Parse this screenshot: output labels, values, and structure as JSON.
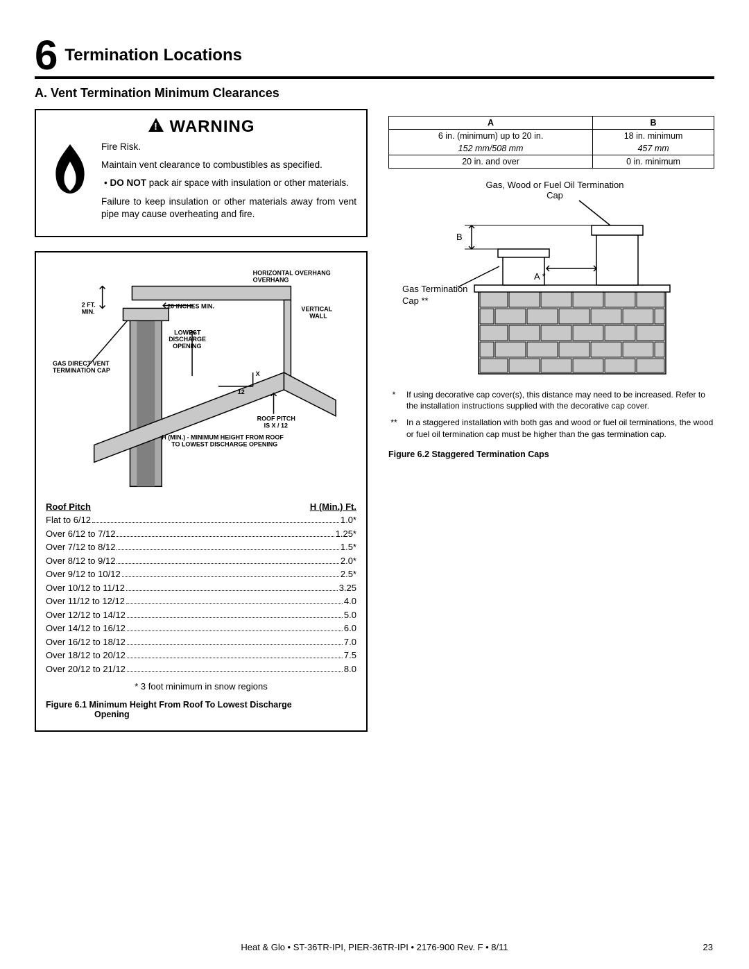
{
  "section": {
    "number": "6",
    "title": "Termination Locations"
  },
  "subsection": "A.  Vent Termination Minimum Clearances",
  "warning": {
    "heading": "WARNING",
    "fire_risk": "Fire Risk.",
    "maintain": "Maintain vent clearance to combustibles as specified.",
    "donot_label": "DO NOT",
    "donot_rest": " pack air space with insulation or other materials.",
    "failure": "Failure to keep insulation or other materials away from vent pipe may cause overheating and fire."
  },
  "roof_diagram": {
    "labels": {
      "horiz_overhang": "HORIZONTAL OVERHANG",
      "two_ft_min": "2 FT. MIN.",
      "twenty_in_min": "20 INCHES MIN.",
      "vertical_wall": "VERTICAL WALL",
      "lowest": "LOWEST DISCHARGE OPENING",
      "gas_cap": "GAS DIRECT VENT TERMINATION CAP",
      "x12_a": "X",
      "x12_b": "12",
      "roof_pitch": "ROOF PITCH IS  X / 12",
      "hmin": "H (MIN.) - MINIMUM HEIGHT FROM ROOF TO LOWEST DISCHARGE OPENING"
    }
  },
  "pitch_table": {
    "head_pitch": "Roof Pitch",
    "head_h": "H (Min.) Ft.",
    "rows": [
      {
        "p": "Flat to 6/12",
        "h": "1.0*"
      },
      {
        "p": "Over 6/12 to 7/12",
        "h": "1.25*"
      },
      {
        "p": "Over 7/12 to 8/12",
        "h": "1.5*"
      },
      {
        "p": "Over 8/12 to 9/12",
        "h": "2.0*"
      },
      {
        "p": "Over 9/12 to 10/12",
        "h": "2.5*"
      },
      {
        "p": "Over 10/12 to 11/12",
        "h": "3.25"
      },
      {
        "p": "Over 11/12 to 12/12",
        "h": "4.0"
      },
      {
        "p": "Over 12/12 to 14/12",
        "h": "5.0"
      },
      {
        "p": "Over 14/12 to 16/12",
        "h": "6.0"
      },
      {
        "p": "Over 16/12 to 18/12",
        "h": "7.0"
      },
      {
        "p": "Over 18/12 to 20/12",
        "h": "7.5"
      },
      {
        "p": "Over 20/12 to 21/12",
        "h": "8.0"
      }
    ],
    "snow_note": "* 3 foot minimum in snow regions",
    "caption_a": "Figure 6.1   Minimum Height From Roof To Lowest Discharge",
    "caption_b": "Opening"
  },
  "ab_table": {
    "head_a": "A",
    "head_b": "B",
    "r1a": "6 in. (minimum) up to 20 in.",
    "r1b": "18 in. minimum",
    "r1a_sub": "152 mm/508 mm",
    "r1b_sub": "457 mm",
    "r2a": "20 in. and over",
    "r2b": "0 in. minimum"
  },
  "chimney": {
    "top_label": "Gas, Wood or Fuel Oil Termination Cap",
    "b": "B",
    "a": "A *",
    "gas_cap": "Gas Termination Cap **"
  },
  "notes": {
    "n1": "If using decorative cap cover(s), this distance may need to be increased. Refer to the installation instructions supplied with the decorative cap cover.",
    "n2": "In a staggered installation with both gas and wood or fuel oil terminations, the wood or fuel oil termination cap must be higher than the gas termination cap."
  },
  "fig62": "Figure 6.2  Staggered Termination Caps",
  "footer": "Heat & Glo  •  ST-36TR-IPI, PIER-36TR-IPI  •  2176-900 Rev. F  •  8/11",
  "page_num": "23",
  "colors": {
    "black": "#000000",
    "grey_fill": "#c8c8c8",
    "grey_mid": "#a9a9a9",
    "grey_dark": "#808080"
  }
}
